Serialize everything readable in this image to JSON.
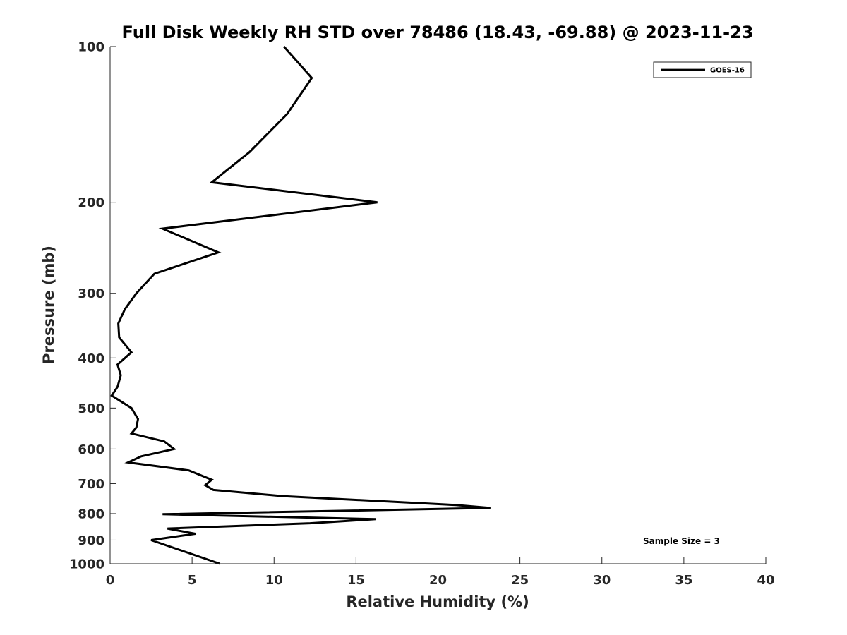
{
  "chart_data": {
    "type": "line",
    "title": "Full Disk Weekly RH STD over 78486 (18.43, -69.88) @ 2023-11-23",
    "xlabel": "Relative Humidity (%)",
    "ylabel": "Pressure (mb)",
    "xlim": [
      0,
      40
    ],
    "ylim": [
      100,
      1000
    ],
    "y_scale": "log",
    "y_reversed": true,
    "x_ticks": [
      0,
      5,
      10,
      15,
      20,
      25,
      30,
      35,
      40
    ],
    "y_ticks": [
      100,
      200,
      300,
      400,
      500,
      600,
      700,
      800,
      900,
      1000
    ],
    "grid": false,
    "legend_position": "top-right",
    "series": [
      {
        "name": "GOES-16",
        "color": "#000000",
        "points": [
          [
            10.6,
            100
          ],
          [
            12.3,
            115
          ],
          [
            10.8,
            135
          ],
          [
            8.5,
            160
          ],
          [
            6.2,
            183
          ],
          [
            16.3,
            200
          ],
          [
            3.2,
            225
          ],
          [
            6.6,
            250
          ],
          [
            2.7,
            275
          ],
          [
            1.6,
            300
          ],
          [
            0.9,
            322
          ],
          [
            0.5,
            343
          ],
          [
            0.55,
            365
          ],
          [
            1.3,
            390
          ],
          [
            0.45,
            412
          ],
          [
            0.65,
            432
          ],
          [
            0.45,
            455
          ],
          [
            0.1,
            473
          ],
          [
            1.3,
            500
          ],
          [
            1.7,
            525
          ],
          [
            1.6,
            545
          ],
          [
            1.3,
            560
          ],
          [
            3.3,
            580
          ],
          [
            3.9,
            600
          ],
          [
            1.9,
            620
          ],
          [
            1.1,
            637
          ],
          [
            4.8,
            660
          ],
          [
            6.2,
            688
          ],
          [
            5.8,
            705
          ],
          [
            6.3,
            720
          ],
          [
            10.5,
            740
          ],
          [
            21.1,
            770
          ],
          [
            23.2,
            780
          ],
          [
            3.2,
            802
          ],
          [
            16.2,
            820
          ],
          [
            12.2,
            835
          ],
          [
            3.5,
            855
          ],
          [
            5.2,
            875
          ],
          [
            2.5,
            900
          ],
          [
            6.7,
            1000
          ]
        ]
      }
    ],
    "annotations": [
      "Sample Size = 3"
    ]
  }
}
